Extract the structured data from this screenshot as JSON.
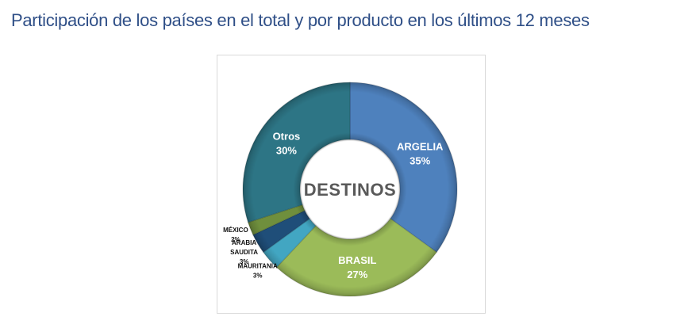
{
  "title": "Participación de los países en el total y por producto en los últimos 12 meses",
  "title_color": "#2F4F87",
  "panel_border_color": "#D9D9D9",
  "background_color": "#FFFFFF",
  "chart_data": {
    "type": "pie",
    "donut": true,
    "center_label": "DESTINOS",
    "center_label_color": "#595959",
    "start_angle_deg": 0,
    "direction": "clockwise",
    "legend": "none",
    "value_suffix": "%",
    "slices": [
      {
        "label": "ARGELIA",
        "value_pct": 35,
        "color": "#4E81BD",
        "label_position": "inside",
        "label_color": "#FFFFFF"
      },
      {
        "label": "BRASIL",
        "value_pct": 27,
        "color": "#9BBB59",
        "label_position": "inside",
        "label_color": "#FFFFFF"
      },
      {
        "label": "MAURITANIA",
        "value_pct": 3,
        "color": "#42A6C2",
        "label_position": "outside",
        "label_color": "#111111"
      },
      {
        "label": "ARABIA SAUDITA",
        "value_pct": 3,
        "color": "#1F4E79",
        "label_position": "outside",
        "label_color": "#111111"
      },
      {
        "label": "MÉXICO",
        "value_pct": 2,
        "color": "#6F8F3D",
        "label_position": "outside",
        "label_color": "#111111"
      },
      {
        "label": "Otros",
        "value_pct": 30,
        "color": "#2D7585",
        "label_position": "inside",
        "label_color": "#FFFFFF"
      }
    ]
  }
}
